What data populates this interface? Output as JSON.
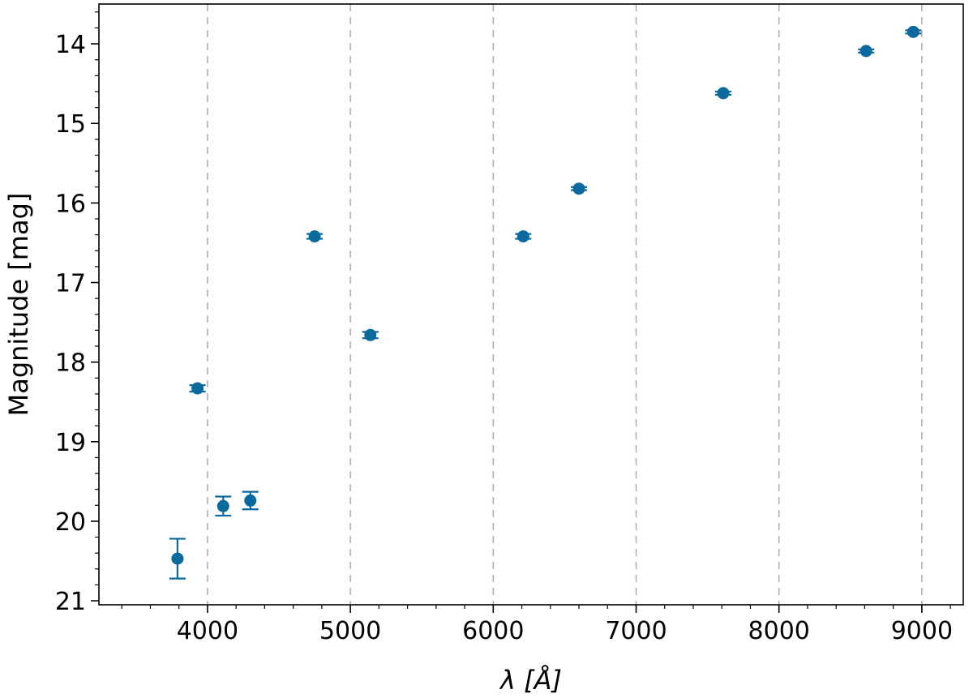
{
  "chart_data": {
    "type": "scatter",
    "title": "",
    "xlabel": "λ [Å]",
    "ylabel": "Magnitude [mag]",
    "xlim": [
      3240,
      9290
    ],
    "ylim": [
      21.05,
      13.5
    ],
    "y_inverted": true,
    "grid": "vertical dashed gray at major x ticks",
    "x_ticks": [
      4000,
      5000,
      6000,
      7000,
      8000,
      9000
    ],
    "x_tick_labels": [
      "4000",
      "5000",
      "6000",
      "7000",
      "8000",
      "9000"
    ],
    "y_ticks": [
      14,
      15,
      16,
      17,
      18,
      19,
      20,
      21
    ],
    "y_tick_labels": [
      "14",
      "15",
      "16",
      "17",
      "18",
      "19",
      "20",
      "21"
    ],
    "marker_color": "#0a6a9d",
    "points": [
      {
        "x": 3790,
        "y": 20.47,
        "err": 0.25
      },
      {
        "x": 3930,
        "y": 18.33,
        "err": 0.04
      },
      {
        "x": 4110,
        "y": 19.81,
        "err": 0.12
      },
      {
        "x": 4300,
        "y": 19.74,
        "err": 0.11
      },
      {
        "x": 4750,
        "y": 16.42,
        "err": 0.03
      },
      {
        "x": 5140,
        "y": 17.66,
        "err": 0.04
      },
      {
        "x": 6210,
        "y": 16.42,
        "err": 0.03
      },
      {
        "x": 6600,
        "y": 15.82,
        "err": 0.02
      },
      {
        "x": 7610,
        "y": 14.62,
        "err": 0.02
      },
      {
        "x": 8610,
        "y": 14.09,
        "err": 0.02
      },
      {
        "x": 8940,
        "y": 13.85,
        "err": 0.02
      }
    ]
  }
}
